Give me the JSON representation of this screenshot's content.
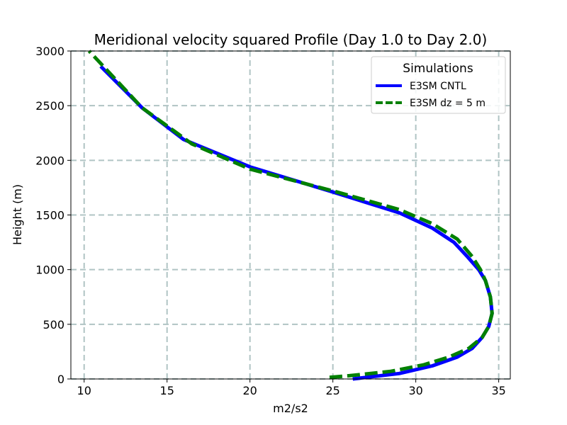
{
  "chart_data": {
    "type": "line",
    "title": "Meridional velocity squared Profile (Day 1.0 to Day 2.0)",
    "xlabel": "m2/s2",
    "ylabel": "Height (m)",
    "xlim": [
      9.2,
      35.7
    ],
    "ylim": [
      0,
      3000
    ],
    "xticks": [
      10,
      15,
      20,
      25,
      30,
      35
    ],
    "yticks": [
      0,
      500,
      1000,
      1500,
      2000,
      2500,
      3000
    ],
    "grid": true,
    "legend": {
      "title": "Simulations",
      "position": "top-right"
    },
    "series": [
      {
        "name": "E3SM CNTL",
        "color": "#0000ff",
        "style": "solid",
        "x": [
          26.2,
          29.0,
          31.0,
          32.5,
          33.4,
          34.0,
          34.4,
          34.6,
          34.5,
          34.2,
          33.8,
          33.1,
          32.3,
          31.0,
          29.0,
          25.0,
          20.0,
          16.0,
          13.5,
          11.0
        ],
        "y": [
          0,
          50,
          120,
          200,
          280,
          380,
          480,
          600,
          750,
          900,
          1000,
          1120,
          1250,
          1380,
          1520,
          1710,
          1940,
          2190,
          2480,
          2860
        ]
      },
      {
        "name": "E3SM dz = 5 m",
        "color": "#008000",
        "style": "dashed",
        "x": [
          24.8,
          26.0,
          28.5,
          30.5,
          32.0,
          33.2,
          34.0,
          34.4,
          34.6,
          34.5,
          34.2,
          33.9,
          33.4,
          32.5,
          31.0,
          29.0,
          25.0,
          20.0,
          16.5,
          13.5,
          10.3
        ],
        "y": [
          15,
          30,
          70,
          130,
          200,
          280,
          380,
          480,
          600,
          750,
          900,
          1000,
          1120,
          1280,
          1420,
          1550,
          1720,
          1920,
          2150,
          2480,
          3000
        ]
      }
    ]
  }
}
